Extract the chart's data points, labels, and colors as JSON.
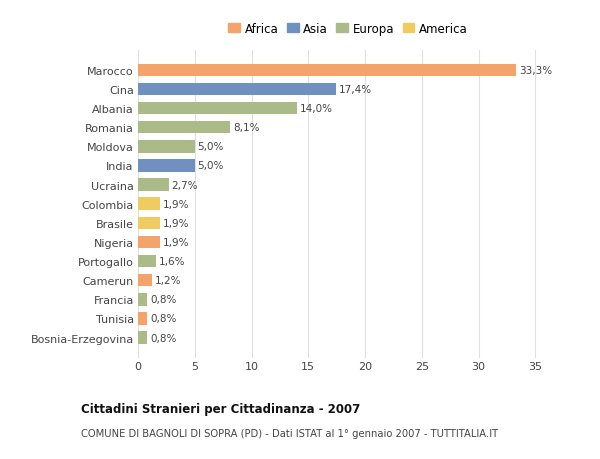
{
  "countries": [
    "Marocco",
    "Cina",
    "Albania",
    "Romania",
    "Moldova",
    "India",
    "Ucraina",
    "Colombia",
    "Brasile",
    "Nigeria",
    "Portogallo",
    "Camerun",
    "Francia",
    "Tunisia",
    "Bosnia-Erzegovina"
  ],
  "values": [
    33.3,
    17.4,
    14.0,
    8.1,
    5.0,
    5.0,
    2.7,
    1.9,
    1.9,
    1.9,
    1.6,
    1.2,
    0.8,
    0.8,
    0.8
  ],
  "labels": [
    "33,3%",
    "17,4%",
    "14,0%",
    "8,1%",
    "5,0%",
    "5,0%",
    "2,7%",
    "1,9%",
    "1,9%",
    "1,9%",
    "1,6%",
    "1,2%",
    "0,8%",
    "0,8%",
    "0,8%"
  ],
  "continents": [
    "Africa",
    "Asia",
    "Europa",
    "Europa",
    "Europa",
    "Asia",
    "Europa",
    "America",
    "America",
    "Africa",
    "Europa",
    "Africa",
    "Europa",
    "Africa",
    "Europa"
  ],
  "colors": {
    "Africa": "#F4A46A",
    "Asia": "#7090C0",
    "Europa": "#AABB88",
    "America": "#F0CC60"
  },
  "legend_order": [
    "Africa",
    "Asia",
    "Europa",
    "America"
  ],
  "title": "Cittadini Stranieri per Cittadinanza - 2007",
  "subtitle": "COMUNE DI BAGNOLI DI SOPRA (PD) - Dati ISTAT al 1° gennaio 2007 - TUTTITALIA.IT",
  "xlim": [
    0,
    37
  ],
  "xticks": [
    0,
    5,
    10,
    15,
    20,
    25,
    30,
    35
  ],
  "background_color": "#ffffff",
  "grid_color": "#e0e0e0",
  "bar_height": 0.65
}
